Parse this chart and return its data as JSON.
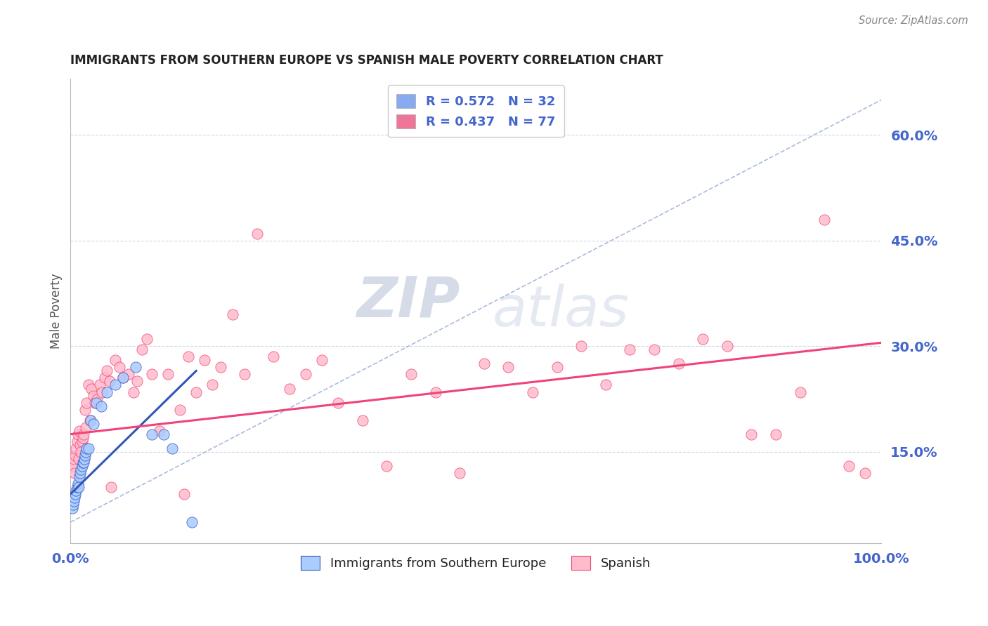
{
  "title": "IMMIGRANTS FROM SOUTHERN EUROPE VS SPANISH MALE POVERTY CORRELATION CHART",
  "source": "Source: ZipAtlas.com",
  "ylabel": "Male Poverty",
  "watermark": "ZIPatlas",
  "legend_entries": [
    {
      "label": "R = 0.572   N = 32",
      "color": "#88aaee"
    },
    {
      "label": "R = 0.437   N = 77",
      "color": "#ee7799"
    }
  ],
  "legend_bottom": [
    {
      "label": "Immigrants from Southern Europe",
      "color": "#aaccff"
    },
    {
      "label": "Spanish",
      "color": "#ffbbcc"
    }
  ],
  "ytick_labels": [
    "15.0%",
    "30.0%",
    "45.0%",
    "60.0%"
  ],
  "ytick_values": [
    0.15,
    0.3,
    0.45,
    0.6
  ],
  "xtick_labels": [
    "0.0%",
    "100.0%"
  ],
  "xlim": [
    0.0,
    1.0
  ],
  "ylim": [
    0.02,
    0.68
  ],
  "blue_dots": [
    [
      0.002,
      0.07
    ],
    [
      0.003,
      0.075
    ],
    [
      0.004,
      0.08
    ],
    [
      0.005,
      0.085
    ],
    [
      0.006,
      0.09
    ],
    [
      0.007,
      0.095
    ],
    [
      0.008,
      0.1
    ],
    [
      0.009,
      0.105
    ],
    [
      0.01,
      0.1
    ],
    [
      0.011,
      0.115
    ],
    [
      0.012,
      0.12
    ],
    [
      0.013,
      0.125
    ],
    [
      0.014,
      0.13
    ],
    [
      0.015,
      0.135
    ],
    [
      0.016,
      0.135
    ],
    [
      0.017,
      0.14
    ],
    [
      0.018,
      0.145
    ],
    [
      0.019,
      0.15
    ],
    [
      0.02,
      0.155
    ],
    [
      0.022,
      0.155
    ],
    [
      0.025,
      0.195
    ],
    [
      0.028,
      0.19
    ],
    [
      0.032,
      0.22
    ],
    [
      0.038,
      0.215
    ],
    [
      0.045,
      0.235
    ],
    [
      0.055,
      0.245
    ],
    [
      0.065,
      0.255
    ],
    [
      0.08,
      0.27
    ],
    [
      0.1,
      0.175
    ],
    [
      0.115,
      0.175
    ],
    [
      0.125,
      0.155
    ],
    [
      0.15,
      0.05
    ]
  ],
  "pink_dots": [
    [
      0.002,
      0.13
    ],
    [
      0.004,
      0.14
    ],
    [
      0.005,
      0.12
    ],
    [
      0.006,
      0.145
    ],
    [
      0.007,
      0.155
    ],
    [
      0.008,
      0.165
    ],
    [
      0.009,
      0.175
    ],
    [
      0.01,
      0.14
    ],
    [
      0.011,
      0.18
    ],
    [
      0.012,
      0.16
    ],
    [
      0.013,
      0.15
    ],
    [
      0.014,
      0.165
    ],
    [
      0.015,
      0.17
    ],
    [
      0.016,
      0.175
    ],
    [
      0.018,
      0.21
    ],
    [
      0.019,
      0.185
    ],
    [
      0.02,
      0.22
    ],
    [
      0.022,
      0.245
    ],
    [
      0.024,
      0.195
    ],
    [
      0.026,
      0.24
    ],
    [
      0.028,
      0.23
    ],
    [
      0.03,
      0.22
    ],
    [
      0.033,
      0.225
    ],
    [
      0.036,
      0.245
    ],
    [
      0.039,
      0.235
    ],
    [
      0.042,
      0.255
    ],
    [
      0.045,
      0.265
    ],
    [
      0.048,
      0.25
    ],
    [
      0.055,
      0.28
    ],
    [
      0.06,
      0.27
    ],
    [
      0.065,
      0.255
    ],
    [
      0.072,
      0.26
    ],
    [
      0.078,
      0.235
    ],
    [
      0.082,
      0.25
    ],
    [
      0.088,
      0.295
    ],
    [
      0.094,
      0.31
    ],
    [
      0.1,
      0.26
    ],
    [
      0.11,
      0.18
    ],
    [
      0.12,
      0.26
    ],
    [
      0.135,
      0.21
    ],
    [
      0.145,
      0.285
    ],
    [
      0.155,
      0.235
    ],
    [
      0.165,
      0.28
    ],
    [
      0.175,
      0.245
    ],
    [
      0.185,
      0.27
    ],
    [
      0.2,
      0.345
    ],
    [
      0.215,
      0.26
    ],
    [
      0.23,
      0.46
    ],
    [
      0.25,
      0.285
    ],
    [
      0.27,
      0.24
    ],
    [
      0.29,
      0.26
    ],
    [
      0.31,
      0.28
    ],
    [
      0.33,
      0.22
    ],
    [
      0.36,
      0.195
    ],
    [
      0.39,
      0.13
    ],
    [
      0.42,
      0.26
    ],
    [
      0.45,
      0.235
    ],
    [
      0.48,
      0.12
    ],
    [
      0.51,
      0.275
    ],
    [
      0.54,
      0.27
    ],
    [
      0.57,
      0.235
    ],
    [
      0.6,
      0.27
    ],
    [
      0.63,
      0.3
    ],
    [
      0.66,
      0.245
    ],
    [
      0.69,
      0.295
    ],
    [
      0.72,
      0.295
    ],
    [
      0.75,
      0.275
    ],
    [
      0.78,
      0.31
    ],
    [
      0.81,
      0.3
    ],
    [
      0.84,
      0.175
    ],
    [
      0.87,
      0.175
    ],
    [
      0.9,
      0.235
    ],
    [
      0.93,
      0.48
    ],
    [
      0.96,
      0.13
    ],
    [
      0.98,
      0.12
    ],
    [
      0.05,
      0.1
    ],
    [
      0.14,
      0.09
    ]
  ],
  "blue_line_x": [
    0.0,
    0.155
  ],
  "blue_line_y": [
    0.09,
    0.265
  ],
  "pink_line_x": [
    0.0,
    1.0
  ],
  "pink_line_y": [
    0.175,
    0.305
  ],
  "dashed_line_x": [
    0.0,
    1.0
  ],
  "dashed_line_y": [
    0.05,
    0.65
  ],
  "title_color": "#222222",
  "source_color": "#888888",
  "tick_color": "#4466cc",
  "grid_color": "#d0d8e8",
  "blue_dot_color": "#aaccff",
  "pink_dot_color": "#ffbbcc",
  "blue_line_color": "#3355bb",
  "pink_line_color": "#ee4477",
  "dashed_line_color": "#aabbdd",
  "watermark_color": "#c8d8ee"
}
